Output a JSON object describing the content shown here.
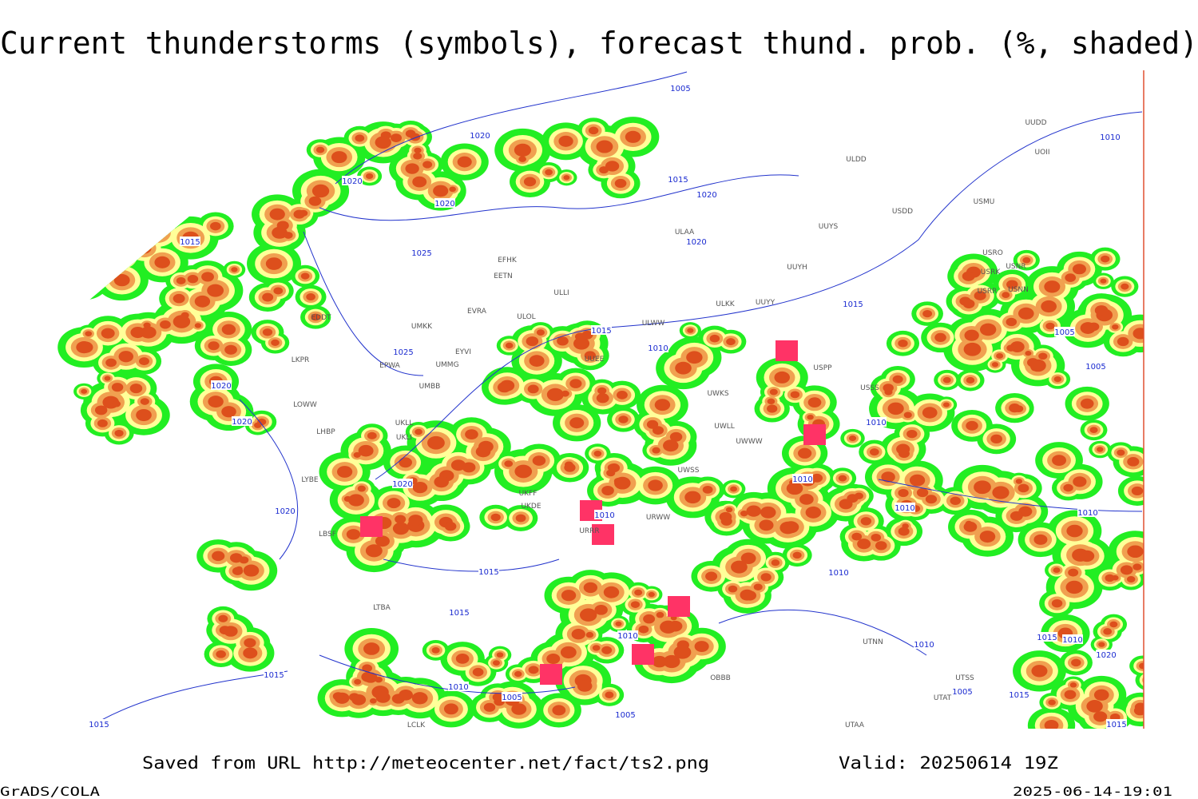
{
  "header": {
    "title": "Current thunderstorms (symbols), forecast thund. prob. (%, shaded)"
  },
  "footer": {
    "source": "Saved from URL http://meteocenter.net/fact/ts2.png",
    "valid": "Valid: 20250614 19Z",
    "software": "GrADS/COLA",
    "timestamp": "2025-06-14-19:01"
  },
  "isobar_labels": [
    "1005",
    "1020",
    "1020",
    "1020",
    "1015",
    "1020",
    "1015",
    "1025",
    "1020",
    "1015",
    "1015",
    "1010",
    "1025",
    "1020",
    "1020",
    "1010",
    "1020",
    "1010",
    "1020",
    "1010",
    "1010",
    "1010",
    "1015",
    "1010",
    "1015",
    "1010",
    "1015",
    "1010",
    "1005",
    "1005",
    "1015",
    "1010",
    "1015",
    "1010",
    "1020",
    "1005",
    "1015",
    "1015",
    "1010",
    "1005",
    "1005"
  ],
  "stations": [
    "ULDD",
    "USDD",
    "USMU",
    "UUYS",
    "ULAA",
    "EFHK",
    "EETN",
    "UUYH",
    "USRO",
    "USRK",
    "USNR",
    "USRR",
    "USNN",
    "ULLI",
    "ULKK",
    "UUYY",
    "EVRA",
    "ULOL",
    "EDDT",
    "UMKK",
    "ULWW",
    "UUDD",
    "UOII",
    "EYVI",
    "LKPR",
    "EPWA",
    "UMMG",
    "USPP",
    "UUEE",
    "UMBB",
    "USSS",
    "UWKS",
    "LOWW",
    "UKLL",
    "UKLI",
    "LHBP",
    "UWLL",
    "UWWW",
    "LYBE",
    "UWSS",
    "UKFF",
    "UKDE",
    "URWW",
    "URRR",
    "LBSF",
    "LTBA",
    "UTNN",
    "OBBB",
    "UTSS",
    "UTAA",
    "UTAT",
    "LCLK"
  ]
}
